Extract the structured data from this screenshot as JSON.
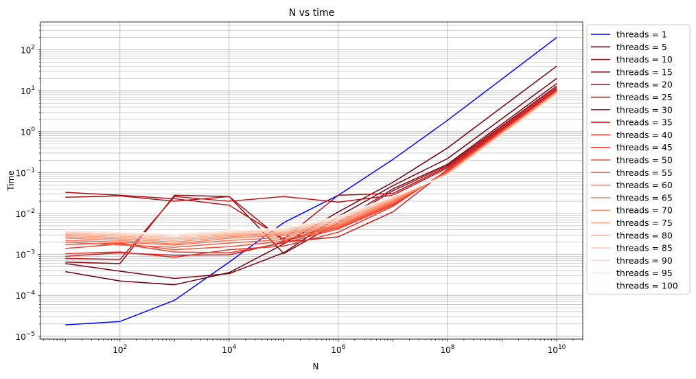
{
  "chart_data": {
    "type": "line",
    "title": "N vs time",
    "xlabel": "N",
    "ylabel": "Time",
    "xscale": "log",
    "yscale": "log",
    "xlim": [
      3.5,
      30000000000.0
    ],
    "ylim": [
      8.5e-06,
      480
    ],
    "x_ticks": [
      {
        "value": 100,
        "base": "10",
        "exp": "2"
      },
      {
        "value": 10000,
        "base": "10",
        "exp": "4"
      },
      {
        "value": 1000000,
        "base": "10",
        "exp": "6"
      },
      {
        "value": 100000000,
        "base": "10",
        "exp": "8"
      },
      {
        "value": 10000000000,
        "base": "10",
        "exp": "10"
      }
    ],
    "y_ticks": [
      {
        "value": 1e-05,
        "base": "10",
        "exp": "−5"
      },
      {
        "value": 0.0001,
        "base": "10",
        "exp": "−4"
      },
      {
        "value": 0.001,
        "base": "10",
        "exp": "−3"
      },
      {
        "value": 0.01,
        "base": "10",
        "exp": "−2"
      },
      {
        "value": 0.1,
        "base": "10",
        "exp": "−1"
      },
      {
        "value": 1,
        "base": "10",
        "exp": "0"
      },
      {
        "value": 10,
        "base": "10",
        "exp": "1"
      },
      {
        "value": 100,
        "base": "10",
        "exp": "2"
      }
    ],
    "grid": "major and minor",
    "legend_position": "outside right",
    "x": [
      10,
      100,
      1000,
      10000,
      100000,
      1000000,
      10000000,
      100000000,
      10000000000
    ],
    "series": [
      {
        "name": "threads = 1",
        "color": "#0000ff",
        "values": [
          1.9e-05,
          2.3e-05,
          7.6e-05,
          0.00065,
          0.006,
          0.028,
          0.21,
          1.9,
          200
        ]
      },
      {
        "name": "threads = 5",
        "color": "#67000d",
        "values": [
          0.00038,
          0.000225,
          0.000182,
          0.00036,
          0.0018,
          0.011,
          0.058,
          0.4,
          40
        ]
      },
      {
        "name": "threads = 10",
        "color": "#74020f",
        "values": [
          0.0006,
          0.00039,
          0.00026,
          0.00034,
          0.0011,
          0.0085,
          0.048,
          0.22,
          20
        ]
      },
      {
        "name": "threads = 15",
        "color": "#820711",
        "values": [
          0.00065,
          0.0006,
          0.028,
          0.026,
          0.00105,
          0.006,
          0.04,
          0.16,
          15
        ]
      },
      {
        "name": "threads = 20",
        "color": "#a10e15",
        "values": [
          0.025,
          0.027,
          0.02,
          0.026,
          0.0021,
          0.0055,
          0.036,
          0.15,
          13
        ]
      },
      {
        "name": "threads = 25",
        "color": "#b11218",
        "values": [
          0.033,
          0.028,
          0.023,
          0.016,
          0.0024,
          0.028,
          0.031,
          0.14,
          12
        ]
      },
      {
        "name": "threads = 30",
        "color": "#c0161b",
        "values": [
          0.0008,
          0.00075,
          0.026,
          0.02,
          0.026,
          0.019,
          0.028,
          0.13,
          11
        ]
      },
      {
        "name": "threads = 35",
        "color": "#d01d1f",
        "values": [
          0.0009,
          0.0011,
          0.00095,
          0.00098,
          0.002,
          0.0027,
          0.011,
          0.12,
          10.5
        ]
      },
      {
        "name": "threads = 40",
        "color": "#e32f27",
        "values": [
          0.00105,
          0.00115,
          0.00085,
          0.0013,
          0.0016,
          0.0035,
          0.015,
          0.115,
          10
        ]
      },
      {
        "name": "threads = 45",
        "color": "#ed3b2c",
        "values": [
          0.0014,
          0.0018,
          0.00115,
          0.0011,
          0.0019,
          0.0042,
          0.016,
          0.11,
          10
        ]
      },
      {
        "name": "threads = 50",
        "color": "#f34c37",
        "values": [
          0.00175,
          0.0019,
          0.0013,
          0.00155,
          0.0021,
          0.0045,
          0.017,
          0.105,
          9.8
        ]
      },
      {
        "name": "threads = 55",
        "color": "#f85f43",
        "values": [
          0.002,
          0.0017,
          0.0015,
          0.0019,
          0.0023,
          0.0048,
          0.018,
          0.1,
          9.6
        ]
      },
      {
        "name": "threads = 60",
        "color": "#fb7050",
        "values": [
          0.0022,
          0.002,
          0.0017,
          0.0022,
          0.0026,
          0.005,
          0.019,
          0.1,
          9.4
        ]
      },
      {
        "name": "threads = 65",
        "color": "#fc8262",
        "values": [
          0.0025,
          0.0022,
          0.0018,
          0.0025,
          0.0029,
          0.0052,
          0.02,
          0.098,
          9.2
        ]
      },
      {
        "name": "threads = 70",
        "color": "#fc9474",
        "values": [
          0.0027,
          0.0024,
          0.002,
          0.0027,
          0.0031,
          0.0056,
          0.021,
          0.096,
          9.0
        ]
      },
      {
        "name": "threads = 75",
        "color": "#fca486",
        "values": [
          0.0029,
          0.0026,
          0.0022,
          0.0029,
          0.0033,
          0.006,
          0.022,
          0.094,
          8.8
        ]
      },
      {
        "name": "threads = 80",
        "color": "#fcb499",
        "values": [
          0.0031,
          0.0028,
          0.0024,
          0.0031,
          0.0035,
          0.0065,
          0.023,
          0.092,
          8.6
        ]
      },
      {
        "name": "threads = 85",
        "color": "#fdc6b0",
        "values": [
          0.0033,
          0.003,
          0.0026,
          0.0033,
          0.0038,
          0.007,
          0.024,
          0.09,
          8.4
        ]
      },
      {
        "name": "threads = 90",
        "color": "#fed8c7",
        "values": [
          0.0035,
          0.0032,
          0.0028,
          0.0035,
          0.004,
          0.0075,
          0.025,
          0.088,
          8.2
        ]
      },
      {
        "name": "threads = 95",
        "color": "#fee7dc",
        "values": [
          0.0037,
          0.0034,
          0.003,
          0.0037,
          0.0042,
          0.008,
          0.026,
          0.086,
          8.0
        ]
      },
      {
        "name": "threads = 100",
        "color": "#fff5f0",
        "values": [
          0.0039,
          0.0036,
          0.0032,
          0.0039,
          0.0044,
          0.0085,
          0.027,
          0.084,
          7.8
        ]
      }
    ]
  }
}
